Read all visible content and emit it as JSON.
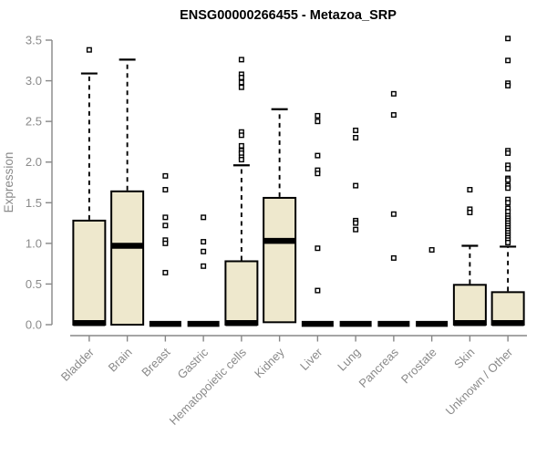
{
  "chart_data": {
    "type": "boxplot",
    "title": "ENSG00000266455 - Metazoa_SRP",
    "ylabel": "Expression",
    "xlabel": "",
    "ylim": [
      0,
      3.5
    ],
    "yticks": [
      0.0,
      0.5,
      1.0,
      1.5,
      2.0,
      2.5,
      3.0,
      3.5
    ],
    "ytick_labels": [
      "0.0",
      "0.5",
      "1.0",
      "1.5",
      "2.0",
      "2.5",
      "3.0",
      "3.5"
    ],
    "grid": "off",
    "legend": "none",
    "categories": [
      "Bladder",
      "Brain",
      "Breast",
      "Gastric",
      "Hematopoietic cells",
      "Kidney",
      "Liver",
      "Lung",
      "Pancreas",
      "Prostate",
      "Skin",
      "Unknown / Other"
    ],
    "boxes": [
      {
        "label": "Bladder",
        "whisker_low": 0,
        "q1": 0,
        "median": 0.02,
        "q3": 1.28,
        "whisker_high": 3.09,
        "outliers": [
          3.38
        ]
      },
      {
        "label": "Brain",
        "whisker_low": 0,
        "q1": 0,
        "median": 0.97,
        "q3": 1.64,
        "whisker_high": 3.26,
        "outliers": []
      },
      {
        "label": "Breast",
        "whisker_low": 0.01,
        "q1": 0.01,
        "median": 0.01,
        "q3": 0.01,
        "whisker_high": 0.01,
        "outliers": [
          1.83,
          1.66,
          1.32,
          1.22,
          1.04,
          1.0,
          0.64
        ]
      },
      {
        "label": "Gastric",
        "whisker_low": 0.01,
        "q1": 0.01,
        "median": 0.01,
        "q3": 0.01,
        "whisker_high": 0.01,
        "outliers": [
          1.32,
          1.02,
          0.9,
          0.72
        ]
      },
      {
        "label": "Hematopoietic cells",
        "whisker_low": 0,
        "q1": 0,
        "median": 0.02,
        "q3": 0.78,
        "whisker_high": 1.96,
        "outliers": [
          3.26,
          3.08,
          3.04,
          2.98,
          2.92,
          2.37,
          2.33,
          2.2,
          2.14,
          2.11,
          2.06,
          2.03
        ]
      },
      {
        "label": "Kidney",
        "whisker_low": 0.03,
        "q1": 0.03,
        "median": 1.03,
        "q3": 1.56,
        "whisker_high": 2.65,
        "outliers": []
      },
      {
        "label": "Liver",
        "whisker_low": 0.01,
        "q1": 0.01,
        "median": 0.01,
        "q3": 0.01,
        "whisker_high": 0.01,
        "outliers": [
          2.57,
          2.5,
          2.08,
          1.9,
          1.86,
          0.94,
          0.42
        ]
      },
      {
        "label": "Lung",
        "whisker_low": 0.01,
        "q1": 0.01,
        "median": 0.01,
        "q3": 0.01,
        "whisker_high": 0.01,
        "outliers": [
          2.39,
          2.3,
          1.71,
          1.28,
          1.25,
          1.17
        ]
      },
      {
        "label": "Pancreas",
        "whisker_low": 0.01,
        "q1": 0.01,
        "median": 0.01,
        "q3": 0.01,
        "whisker_high": 0.01,
        "outliers": [
          2.84,
          2.58,
          1.36,
          0.82
        ]
      },
      {
        "label": "Prostate",
        "whisker_low": 0.01,
        "q1": 0.01,
        "median": 0.01,
        "q3": 0.01,
        "whisker_high": 0.01,
        "outliers": [
          0.92
        ]
      },
      {
        "label": "Skin",
        "whisker_low": 0,
        "q1": 0,
        "median": 0.02,
        "q3": 0.49,
        "whisker_high": 0.97,
        "outliers": [
          1.66,
          1.42,
          1.38
        ]
      },
      {
        "label": "Unknown / Other",
        "whisker_low": 0,
        "q1": 0,
        "median": 0.02,
        "q3": 0.4,
        "whisker_high": 0.96,
        "outliers": [
          3.52,
          3.25,
          2.97,
          2.94,
          2.14,
          2.11,
          1.96,
          1.92,
          1.8,
          1.78,
          1.71,
          1.68,
          1.54,
          1.5,
          1.43,
          1.39,
          1.34,
          1.31,
          1.28,
          1.25,
          1.22,
          1.19,
          1.16,
          1.13,
          1.1,
          1.07,
          1.04,
          1.01
        ]
      }
    ],
    "colors": {
      "box_fill": "#EEE8CD",
      "box_stroke": "#000000",
      "median": "#000000",
      "whisker": "#000000",
      "outlier_stroke": "#000000",
      "outlier_fill": "#FFFFFF",
      "axis_line": "#878787",
      "axis_text": "#8A8A8A",
      "title_text": "#000000",
      "background": "#FFFFFF"
    }
  }
}
